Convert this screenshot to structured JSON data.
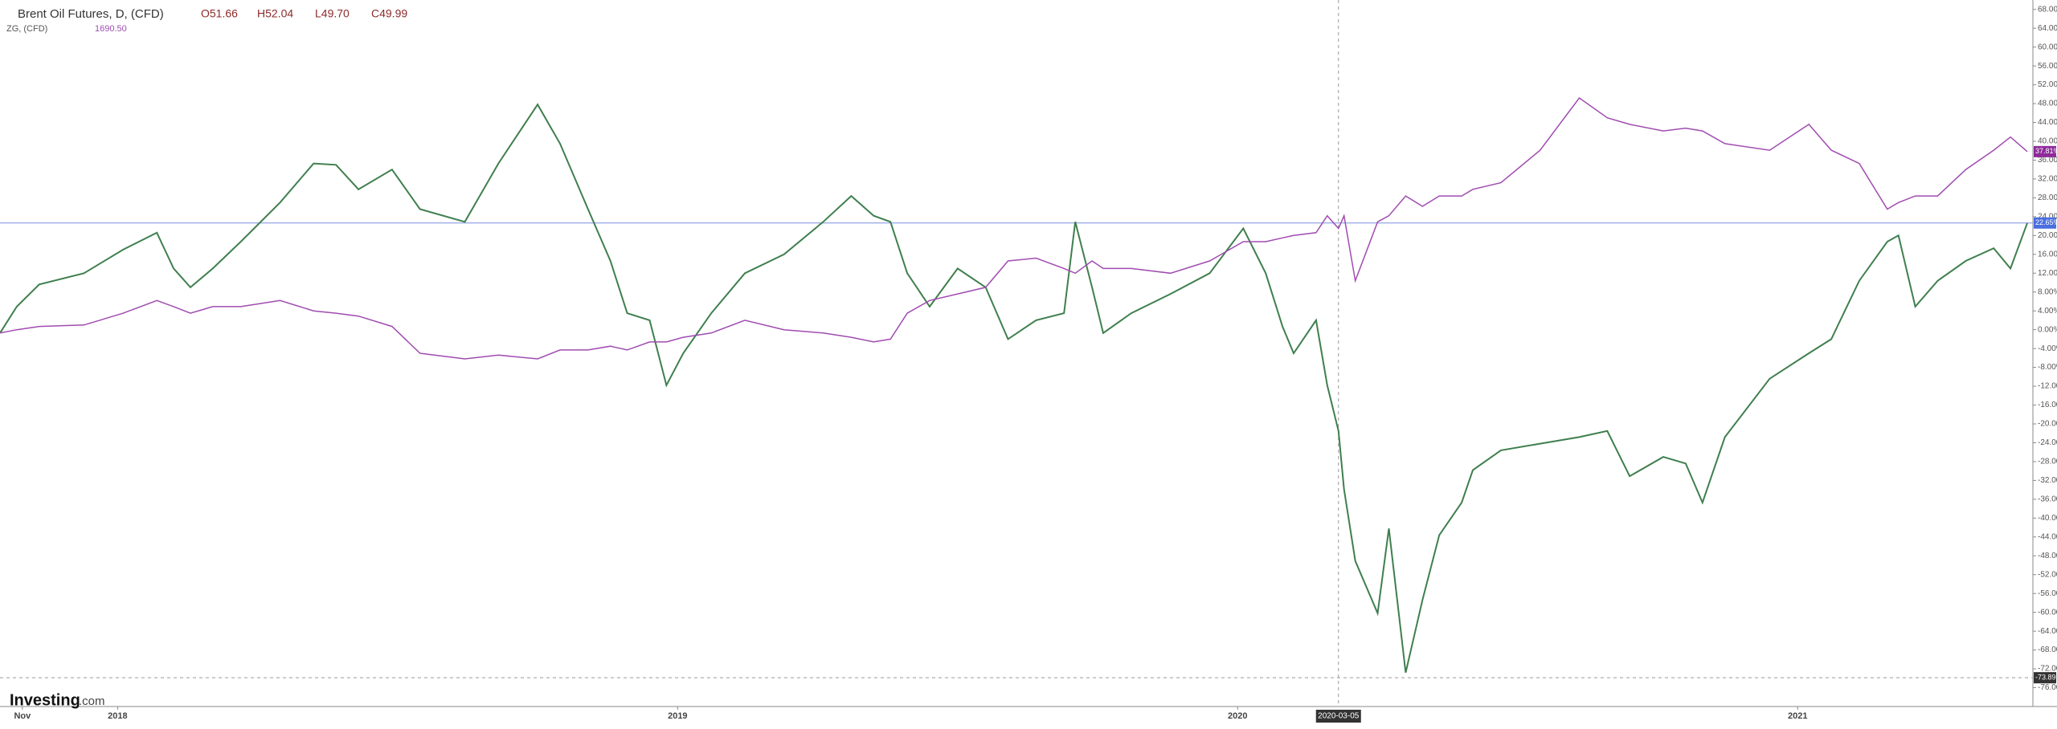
{
  "chart_data": {
    "type": "line",
    "title": "Brent Oil Futures, D, (CFD)",
    "ohlc": [
      "O51.66",
      "H52.04",
      "L49.70",
      "C49.99"
    ],
    "compare_title": "ZG, (CFD)",
    "compare_value": "1690.50",
    "brand": [
      "Investing",
      ".com"
    ],
    "x": [
      2017.79,
      2017.82,
      2017.86,
      2017.94,
      2018.01,
      2018.07,
      2018.1,
      2018.13,
      2018.17,
      2018.22,
      2018.29,
      2018.35,
      2018.39,
      2018.43,
      2018.49,
      2018.54,
      2018.62,
      2018.68,
      2018.75,
      2018.79,
      2018.84,
      2018.88,
      2018.91,
      2018.95,
      2018.98,
      2019.01,
      2019.06,
      2019.12,
      2019.19,
      2019.26,
      2019.31,
      2019.35,
      2019.38,
      2019.41,
      2019.45,
      2019.5,
      2019.55,
      2019.59,
      2019.64,
      2019.69,
      2019.71,
      2019.74,
      2019.76,
      2019.81,
      2019.88,
      2019.95,
      2020.01,
      2020.05,
      2020.08,
      2020.1,
      2020.14,
      2020.16,
      2020.18,
      2020.19,
      2020.21,
      2020.25,
      2020.27,
      2020.3,
      2020.33,
      2020.36,
      2020.4,
      2020.42,
      2020.47,
      2020.54,
      2020.61,
      2020.66,
      2020.7,
      2020.76,
      2020.8,
      2020.83,
      2020.87,
      2020.95,
      2021.02,
      2021.06,
      2021.11,
      2021.16,
      2021.18,
      2021.21,
      2021.25,
      2021.3,
      2021.35,
      2021.38,
      2021.41
    ],
    "series": [
      {
        "name": "Brent Oil Futures, D, (CFD)",
        "color": "#3f7f4e",
        "values": [
          -0.7,
          4.9,
          9.6,
          12,
          17,
          20.6,
          13,
          9,
          13,
          18.7,
          27,
          35.3,
          35,
          29.8,
          34,
          25.6,
          22.9,
          35.3,
          47.8,
          39.5,
          25.6,
          14.6,
          3.5,
          2,
          -11.8,
          -5,
          3.5,
          12,
          16,
          22.9,
          28.4,
          24.2,
          22.9,
          12,
          4.9,
          13,
          9,
          -2,
          2,
          3.5,
          22.9,
          9,
          -0.7,
          3.5,
          7.6,
          12,
          21.5,
          12,
          0.7,
          -5,
          2,
          -11.8,
          -21.5,
          -33.9,
          -49.1,
          -60.2,
          -42.2,
          -72.8,
          -57.4,
          -43.6,
          -36.7,
          -29.8,
          -25.6,
          -24.2,
          -22.8,
          -21.5,
          -31.1,
          -27,
          -28.4,
          -36.7,
          -22.8,
          -10.4,
          -5,
          -2,
          10.4,
          18.7,
          20,
          4.9,
          10.4,
          14.6,
          17.3,
          13,
          22.65
        ]
      },
      {
        "name": "ZG, (CFD)",
        "color": "#a04cb0",
        "values": [
          -0.7,
          0,
          0.7,
          1,
          3.5,
          6.2,
          4.9,
          3.5,
          4.9,
          4.9,
          6.2,
          4,
          3.5,
          2.9,
          0.7,
          -5,
          -6.2,
          -5.4,
          -6.2,
          -4.3,
          -4.3,
          -3.5,
          -4.3,
          -2.6,
          -2.6,
          -1.6,
          -0.7,
          2,
          0,
          -0.7,
          -1.6,
          -2.6,
          -2,
          3.5,
          6.2,
          7.6,
          9,
          14.6,
          15.2,
          13,
          12,
          14.6,
          13,
          13,
          12,
          14.6,
          18.7,
          18.7,
          19.5,
          20,
          20.6,
          24.2,
          21.5,
          24.2,
          10.4,
          22.9,
          24.2,
          28.4,
          26.2,
          28.4,
          28.4,
          29.8,
          31.2,
          38.1,
          49.2,
          45,
          43.6,
          42.2,
          42.8,
          42.2,
          39.5,
          38.1,
          43.6,
          38.1,
          35.3,
          25.6,
          27,
          28.4,
          28.4,
          34,
          38.1,
          40.9,
          37.81
        ]
      }
    ],
    "xlim": [
      2017.79,
      2021.42
    ],
    "ylim": [
      -80,
      70
    ],
    "xticks": [
      {
        "value": 2017.83,
        "label": "Nov"
      },
      2018,
      2019,
      2020,
      2021
    ],
    "yticks": [
      {
        "value": 68,
        "label": "68.00%"
      },
      {
        "value": 64,
        "label": "64.00%"
      },
      {
        "value": 60,
        "label": "60.00%"
      },
      {
        "value": 56,
        "label": "56.00%"
      },
      {
        "value": 52,
        "label": "52.00%"
      },
      {
        "value": 48,
        "label": "48.00%"
      },
      {
        "value": 44,
        "label": "44.00%"
      },
      {
        "value": 40,
        "label": "40.00%"
      },
      {
        "value": 36,
        "label": "36.00%"
      },
      {
        "value": 32,
        "label": "32.00%"
      },
      {
        "value": 28,
        "label": "28.00%"
      },
      {
        "value": 24,
        "label": "24.00%"
      },
      {
        "value": 20,
        "label": "20.00%"
      },
      {
        "value": 16,
        "label": "16.00%"
      },
      {
        "value": 12,
        "label": "12.00%"
      },
      {
        "value": 8,
        "label": "8.00%"
      },
      {
        "value": 4,
        "label": "4.00%"
      },
      {
        "value": 0,
        "label": "0.00%"
      },
      {
        "value": -4,
        "label": "-4.00%"
      },
      {
        "value": -8,
        "label": "-8.00%"
      },
      {
        "value": -12,
        "label": "-12.00%"
      },
      {
        "value": -16,
        "label": "-16.00%"
      },
      {
        "value": -20,
        "label": "-20.00%"
      },
      {
        "value": -24,
        "label": "-24.00%"
      },
      {
        "value": -28,
        "label": "-28.00%"
      },
      {
        "value": -32,
        "label": "-32.00%"
      },
      {
        "value": -36,
        "label": "-36.00%"
      },
      {
        "value": -40,
        "label": "-40.00%"
      },
      {
        "value": -44,
        "label": "-44.00%"
      },
      {
        "value": -48,
        "label": "-48.00%"
      },
      {
        "value": -52,
        "label": "-52.00%"
      },
      {
        "value": -56,
        "label": "-56.00%"
      },
      {
        "value": -60,
        "label": "-60.00%"
      },
      {
        "value": -64,
        "label": "-64.00%"
      },
      {
        "value": -68,
        "label": "-68.00%"
      },
      {
        "value": -72,
        "label": "-72.00%"
      },
      {
        "value": -76,
        "label": "-76.00%"
      }
    ],
    "price_line": {
      "value": 22.65,
      "label": "22.65%"
    },
    "compare_last": {
      "value": 37.81,
      "label": "37.81%"
    },
    "crosshair_y": {
      "value": -73.89,
      "label": "-73.89"
    },
    "crosshair_x": {
      "value": 2020.18,
      "label": "2020-03-05"
    }
  }
}
